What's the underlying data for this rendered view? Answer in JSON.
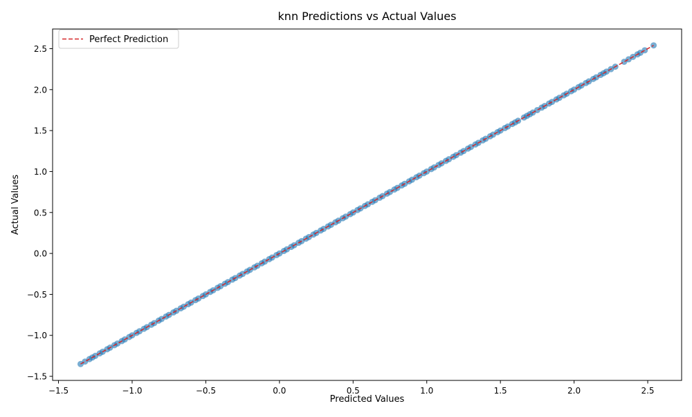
{
  "chart_data": {
    "type": "scatter",
    "title": "knn Predictions vs Actual Values",
    "xlabel": "Predicted Values",
    "ylabel": "Actual Values",
    "xlim": [
      -1.54,
      2.73
    ],
    "ylim": [
      -1.55,
      2.74
    ],
    "xticks": [
      {
        "value": -1.5,
        "label": "−1.5"
      },
      {
        "value": -1.0,
        "label": "−1.0"
      },
      {
        "value": -0.5,
        "label": "−0.5"
      },
      {
        "value": 0.0,
        "label": "0.0"
      },
      {
        "value": 0.5,
        "label": "0.5"
      },
      {
        "value": 1.0,
        "label": "1.0"
      },
      {
        "value": 1.5,
        "label": "1.5"
      },
      {
        "value": 2.0,
        "label": "2.0"
      },
      {
        "value": 2.5,
        "label": "2.5"
      }
    ],
    "yticks": [
      {
        "value": -1.5,
        "label": "−1.5"
      },
      {
        "value": -1.0,
        "label": "−1.0"
      },
      {
        "value": -0.5,
        "label": "−0.5"
      },
      {
        "value": 0.0,
        "label": "0.0"
      },
      {
        "value": 0.5,
        "label": "0.5"
      },
      {
        "value": 1.0,
        "label": "1.0"
      },
      {
        "value": 1.5,
        "label": "1.5"
      },
      {
        "value": 2.0,
        "label": "2.0"
      },
      {
        "value": 2.5,
        "label": "2.5"
      }
    ],
    "grid": false,
    "legend": {
      "position": "top-left",
      "entries": [
        "Perfect Prediction"
      ]
    },
    "series": [
      {
        "kind": "scatter",
        "color": "#1f77b4",
        "alpha": 0.6,
        "x": [
          -1.35,
          -1.32,
          -1.29,
          -1.27,
          -1.25,
          -1.22,
          -1.2,
          -1.17,
          -1.15,
          -1.12,
          -1.1,
          -1.07,
          -1.05,
          -1.02,
          -1.0,
          -0.97,
          -0.95,
          -0.92,
          -0.9,
          -0.87,
          -0.85,
          -0.82,
          -0.8,
          -0.77,
          -0.75,
          -0.72,
          -0.7,
          -0.67,
          -0.65,
          -0.62,
          -0.6,
          -0.57,
          -0.55,
          -0.52,
          -0.5,
          -0.47,
          -0.45,
          -0.42,
          -0.4,
          -0.37,
          -0.35,
          -0.32,
          -0.3,
          -0.27,
          -0.25,
          -0.22,
          -0.2,
          -0.17,
          -0.15,
          -0.12,
          -0.1,
          -0.07,
          -0.05,
          -0.02,
          0.0,
          0.03,
          0.05,
          0.08,
          0.1,
          0.13,
          0.15,
          0.18,
          0.2,
          0.23,
          0.25,
          0.28,
          0.3,
          0.33,
          0.35,
          0.38,
          0.4,
          0.43,
          0.45,
          0.48,
          0.5,
          0.53,
          0.55,
          0.58,
          0.6,
          0.63,
          0.65,
          0.68,
          0.7,
          0.73,
          0.75,
          0.78,
          0.8,
          0.83,
          0.85,
          0.88,
          0.9,
          0.93,
          0.95,
          0.98,
          1.0,
          1.03,
          1.05,
          1.08,
          1.1,
          1.13,
          1.15,
          1.18,
          1.2,
          1.23,
          1.25,
          1.28,
          1.3,
          1.33,
          1.35,
          1.38,
          1.4,
          1.43,
          1.45,
          1.48,
          1.5,
          1.53,
          1.55,
          1.58,
          1.6,
          1.62,
          1.66,
          1.68,
          1.7,
          1.72,
          1.75,
          1.78,
          1.8,
          1.83,
          1.85,
          1.88,
          1.9,
          1.93,
          1.95,
          1.98,
          2.0,
          2.03,
          2.05,
          2.08,
          2.1,
          2.13,
          2.15,
          2.18,
          2.2,
          2.22,
          2.25,
          2.28,
          2.34,
          2.37,
          2.4,
          2.43,
          2.45,
          2.48,
          2.54
        ],
        "y": [
          -1.35,
          -1.32,
          -1.29,
          -1.27,
          -1.25,
          -1.22,
          -1.2,
          -1.17,
          -1.15,
          -1.12,
          -1.1,
          -1.07,
          -1.05,
          -1.02,
          -1.0,
          -0.97,
          -0.95,
          -0.92,
          -0.9,
          -0.87,
          -0.85,
          -0.82,
          -0.8,
          -0.77,
          -0.75,
          -0.72,
          -0.7,
          -0.67,
          -0.65,
          -0.62,
          -0.6,
          -0.57,
          -0.55,
          -0.52,
          -0.5,
          -0.47,
          -0.45,
          -0.42,
          -0.4,
          -0.37,
          -0.35,
          -0.32,
          -0.3,
          -0.27,
          -0.25,
          -0.22,
          -0.2,
          -0.17,
          -0.15,
          -0.12,
          -0.1,
          -0.07,
          -0.05,
          -0.02,
          0.0,
          0.03,
          0.05,
          0.08,
          0.1,
          0.13,
          0.15,
          0.18,
          0.2,
          0.23,
          0.25,
          0.28,
          0.3,
          0.33,
          0.35,
          0.38,
          0.4,
          0.43,
          0.45,
          0.48,
          0.5,
          0.53,
          0.55,
          0.58,
          0.6,
          0.63,
          0.65,
          0.68,
          0.7,
          0.73,
          0.75,
          0.78,
          0.8,
          0.83,
          0.85,
          0.88,
          0.9,
          0.93,
          0.95,
          0.98,
          1.0,
          1.03,
          1.05,
          1.08,
          1.1,
          1.13,
          1.15,
          1.18,
          1.2,
          1.23,
          1.25,
          1.28,
          1.3,
          1.33,
          1.35,
          1.38,
          1.4,
          1.43,
          1.45,
          1.48,
          1.5,
          1.53,
          1.55,
          1.58,
          1.6,
          1.62,
          1.66,
          1.68,
          1.7,
          1.72,
          1.75,
          1.78,
          1.8,
          1.83,
          1.85,
          1.88,
          1.9,
          1.93,
          1.95,
          1.98,
          2.0,
          2.03,
          2.05,
          2.08,
          2.1,
          2.13,
          2.15,
          2.18,
          2.2,
          2.22,
          2.25,
          2.28,
          2.34,
          2.37,
          2.4,
          2.43,
          2.45,
          2.48,
          2.54
        ]
      },
      {
        "kind": "line",
        "name": "Perfect Prediction",
        "color": "#d62728",
        "dashed": true,
        "x": [
          -1.35,
          2.54
        ],
        "y": [
          -1.35,
          2.54
        ]
      }
    ]
  }
}
